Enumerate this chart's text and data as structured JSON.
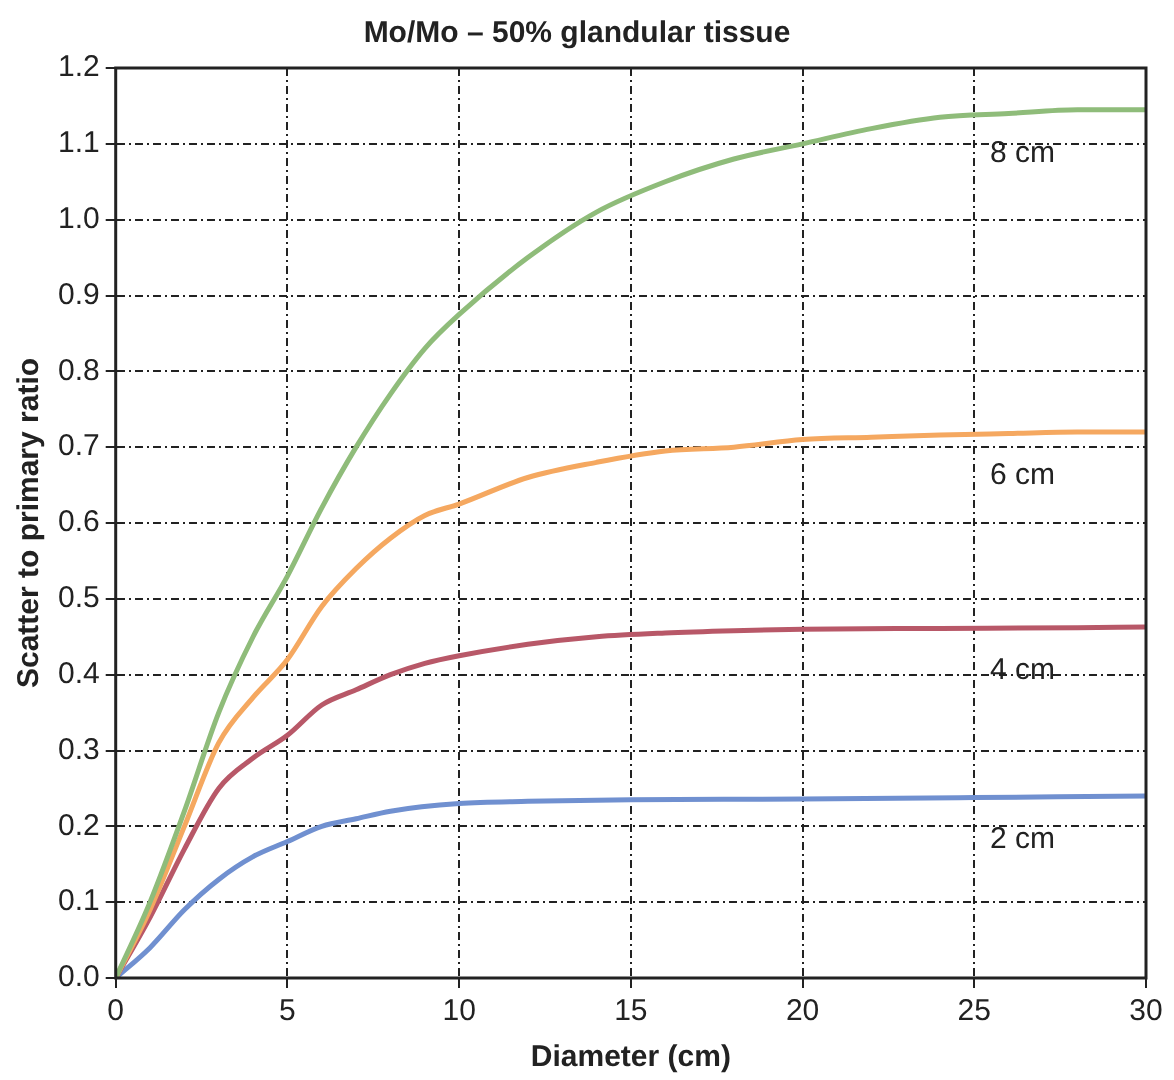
{
  "chart_data": {
    "type": "line",
    "title": "Mo/Mo – 50% glandular tissue",
    "xlabel": "Diameter (cm)",
    "ylabel": "Scatter to primary ratio",
    "xlim": [
      0,
      30
    ],
    "xticks": [
      0,
      5,
      10,
      15,
      20,
      25,
      30
    ],
    "ylim": [
      0,
      1.2
    ],
    "yticks": [
      {
        "value": 0,
        "label": "0.0"
      },
      0.1,
      0.2,
      0.3,
      0.4,
      0.5,
      0.6,
      0.7,
      0.8,
      0.9,
      {
        "value": 1,
        "label": "1.0"
      },
      1.1,
      1.2
    ],
    "grid": true,
    "legend": false,
    "marker": "none",
    "line_style": "solid",
    "series": [
      {
        "name": "8 cm",
        "color": "#8fbc7a",
        "x": [
          0,
          1,
          2,
          3,
          4,
          5,
          6,
          7,
          8,
          9,
          10,
          12,
          14,
          16,
          18,
          20,
          22,
          24,
          26,
          28,
          30
        ],
        "values": [
          0,
          0.1,
          0.22,
          0.35,
          0.45,
          0.53,
          0.62,
          0.7,
          0.77,
          0.83,
          0.875,
          0.95,
          1.01,
          1.05,
          1.08,
          1.1,
          1.12,
          1.135,
          1.14,
          1.145,
          1.145
        ]
      },
      {
        "name": "6 cm",
        "color": "#f5a860",
        "x": [
          0,
          1,
          2,
          3,
          4,
          5,
          6,
          7,
          8,
          9,
          10,
          12,
          14,
          16,
          18,
          20,
          22,
          24,
          26,
          28,
          30
        ],
        "values": [
          0,
          0.09,
          0.2,
          0.31,
          0.37,
          0.42,
          0.49,
          0.54,
          0.58,
          0.61,
          0.625,
          0.66,
          0.68,
          0.695,
          0.7,
          0.71,
          0.713,
          0.716,
          0.718,
          0.72,
          0.72
        ]
      },
      {
        "name": "4 cm",
        "color": "#b85868",
        "x": [
          0,
          1,
          2,
          3,
          4,
          5,
          6,
          7,
          8,
          9,
          10,
          12,
          14,
          16,
          18,
          20,
          24,
          28,
          30
        ],
        "values": [
          0,
          0.08,
          0.17,
          0.25,
          0.29,
          0.32,
          0.36,
          0.38,
          0.4,
          0.415,
          0.425,
          0.44,
          0.45,
          0.455,
          0.458,
          0.46,
          0.461,
          0.462,
          0.463
        ]
      },
      {
        "name": "2 cm",
        "color": "#7090d0",
        "x": [
          0,
          1,
          2,
          3,
          4,
          5,
          6,
          7,
          8,
          10,
          12,
          15,
          20,
          25,
          30
        ],
        "values": [
          0,
          0.04,
          0.09,
          0.13,
          0.16,
          0.18,
          0.2,
          0.21,
          0.22,
          0.23,
          0.233,
          0.235,
          0.236,
          0.238,
          0.24
        ]
      }
    ]
  }
}
